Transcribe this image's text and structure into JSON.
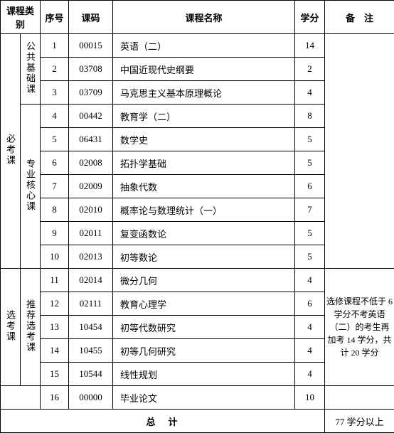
{
  "headers": {
    "category": "课程类别",
    "seq": "序号",
    "code": "课码",
    "name": "课程名称",
    "credit": "学分",
    "note": "备　注"
  },
  "cat1": {
    "required": "必考课",
    "elective": "选考课"
  },
  "cat2": {
    "public": "公共基础课",
    "core": "专业核心课",
    "recommend": "推荐选考课"
  },
  "rows": [
    {
      "seq": "1",
      "code": "00015",
      "name": "英语（二）",
      "credit": "14"
    },
    {
      "seq": "2",
      "code": "03708",
      "name": "中国近现代史纲要",
      "credit": "2"
    },
    {
      "seq": "3",
      "code": "03709",
      "name": "马克思主义基本原理概论",
      "credit": "4"
    },
    {
      "seq": "4",
      "code": "00442",
      "name": "教育学（二）",
      "credit": "8"
    },
    {
      "seq": "5",
      "code": "06431",
      "name": "数学史",
      "credit": "5"
    },
    {
      "seq": "6",
      "code": "02008",
      "name": "拓扑学基础",
      "credit": "5"
    },
    {
      "seq": "7",
      "code": "02009",
      "name": "抽象代数",
      "credit": "6"
    },
    {
      "seq": "8",
      "code": "02010",
      "name": "概率论与数理统计（一）",
      "credit": "7"
    },
    {
      "seq": "9",
      "code": "02011",
      "name": "复变函数论",
      "credit": "5"
    },
    {
      "seq": "10",
      "code": "02013",
      "name": "初等数论",
      "credit": "5"
    },
    {
      "seq": "11",
      "code": "02014",
      "name": "微分几何",
      "credit": "4"
    },
    {
      "seq": "12",
      "code": "02111",
      "name": "教育心理学",
      "credit": "6"
    },
    {
      "seq": "13",
      "code": "10454",
      "name": "初等代数研究",
      "credit": "4"
    },
    {
      "seq": "14",
      "code": "10455",
      "name": "初等几何研究",
      "credit": "4"
    },
    {
      "seq": "15",
      "code": "10544",
      "name": "线性规划",
      "credit": "4"
    },
    {
      "seq": "16",
      "code": "00000",
      "name": "毕业论文",
      "credit": "10"
    }
  ],
  "note_elective": "选修课程不低于 6 学分不考英语（二）的考生再加考 14 学分，共计 20 学分",
  "total": {
    "label": "总计",
    "value": "77 学分以上"
  }
}
